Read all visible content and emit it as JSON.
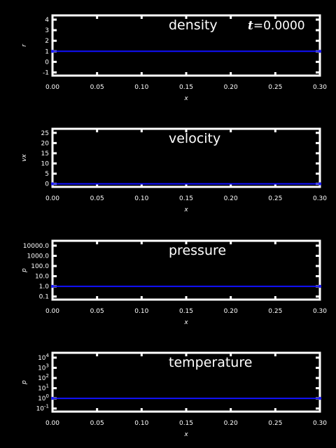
{
  "time_label": {
    "var": "t",
    "eq": "=",
    "value": "0.0000"
  },
  "colors": {
    "background": "#000000",
    "axes": "#ffffff",
    "series": "#1010ff"
  },
  "chart_data": [
    {
      "type": "line",
      "title": "density",
      "xlabel": "x",
      "ylabel": "r",
      "xlim": [
        0,
        0.3
      ],
      "ylim": [
        -1.3,
        4.4
      ],
      "x_ticks": [
        0,
        0.05,
        0.1,
        0.15,
        0.2,
        0.25,
        0.3
      ],
      "x_tick_labels": [
        "0.00",
        "0.05",
        "0.10",
        "0.15",
        "0.20",
        "0.25",
        "0.30"
      ],
      "y_ticks": [
        {
          "value": 4,
          "label": "4"
        },
        {
          "value": 3,
          "label": "3"
        },
        {
          "value": 2,
          "label": "2"
        },
        {
          "value": 1,
          "label": "1"
        },
        {
          "value": 0,
          "label": "0"
        },
        {
          "value": -1,
          "label": "-1"
        }
      ],
      "series": [
        {
          "x": [
            0,
            0.3
          ],
          "y": [
            1,
            1
          ]
        }
      ]
    },
    {
      "type": "line",
      "title": "velocity",
      "xlabel": "x",
      "ylabel": "vx",
      "xlim": [
        0,
        0.3
      ],
      "ylim": [
        -1.5,
        27
      ],
      "x_ticks": [
        0,
        0.05,
        0.1,
        0.15,
        0.2,
        0.25,
        0.3
      ],
      "x_tick_labels": [
        "0.00",
        "0.05",
        "0.10",
        "0.15",
        "0.20",
        "0.25",
        "0.30"
      ],
      "y_ticks": [
        {
          "value": 25,
          "label": "25"
        },
        {
          "value": 20,
          "label": "20"
        },
        {
          "value": 15,
          "label": "15"
        },
        {
          "value": 10,
          "label": "10"
        },
        {
          "value": 5,
          "label": "5"
        },
        {
          "value": 0,
          "label": "0"
        }
      ],
      "series": [
        {
          "x": [
            0,
            0.3
          ],
          "y": [
            0,
            0
          ]
        }
      ]
    },
    {
      "type": "line",
      "title": "pressure",
      "xlabel": "x",
      "ylabel": "p",
      "ylog": true,
      "xlim": [
        0,
        0.3
      ],
      "ylim": [
        0.05,
        30000
      ],
      "x_ticks": [
        0,
        0.05,
        0.1,
        0.15,
        0.2,
        0.25,
        0.3
      ],
      "x_tick_labels": [
        "0.00",
        "0.05",
        "0.10",
        "0.15",
        "0.20",
        "0.25",
        "0.30"
      ],
      "y_ticks": [
        {
          "value": 10000,
          "label": "10000.0"
        },
        {
          "value": 1000,
          "label": "1000.0"
        },
        {
          "value": 100,
          "label": "100.0"
        },
        {
          "value": 10,
          "label": "10.0"
        },
        {
          "value": 1,
          "label": "1.0"
        },
        {
          "value": 0.1,
          "label": "0.1"
        }
      ],
      "series": [
        {
          "x": [
            0,
            0.3
          ],
          "y": [
            1,
            1
          ]
        }
      ]
    },
    {
      "type": "line",
      "title": "temperature",
      "xlabel": "x",
      "ylabel": "p",
      "ylog": true,
      "xlim": [
        0,
        0.3
      ],
      "ylim": [
        0.05,
        30000
      ],
      "x_ticks": [
        0,
        0.05,
        0.1,
        0.15,
        0.2,
        0.25,
        0.3
      ],
      "x_tick_labels": [
        "0.00",
        "0.05",
        "0.10",
        "0.15",
        "0.20",
        "0.25",
        "0.30"
      ],
      "y_ticks": [
        {
          "value": 10000,
          "label": "10",
          "sup": "4"
        },
        {
          "value": 1000,
          "label": "10",
          "sup": "3"
        },
        {
          "value": 100,
          "label": "10",
          "sup": "2"
        },
        {
          "value": 10,
          "label": "10",
          "sup": "1"
        },
        {
          "value": 1,
          "label": "10",
          "sup": "0"
        },
        {
          "value": 0.1,
          "label": "10",
          "sup": "-1"
        }
      ],
      "series": [
        {
          "x": [
            0,
            0.3
          ],
          "y": [
            1,
            1
          ]
        }
      ]
    }
  ]
}
